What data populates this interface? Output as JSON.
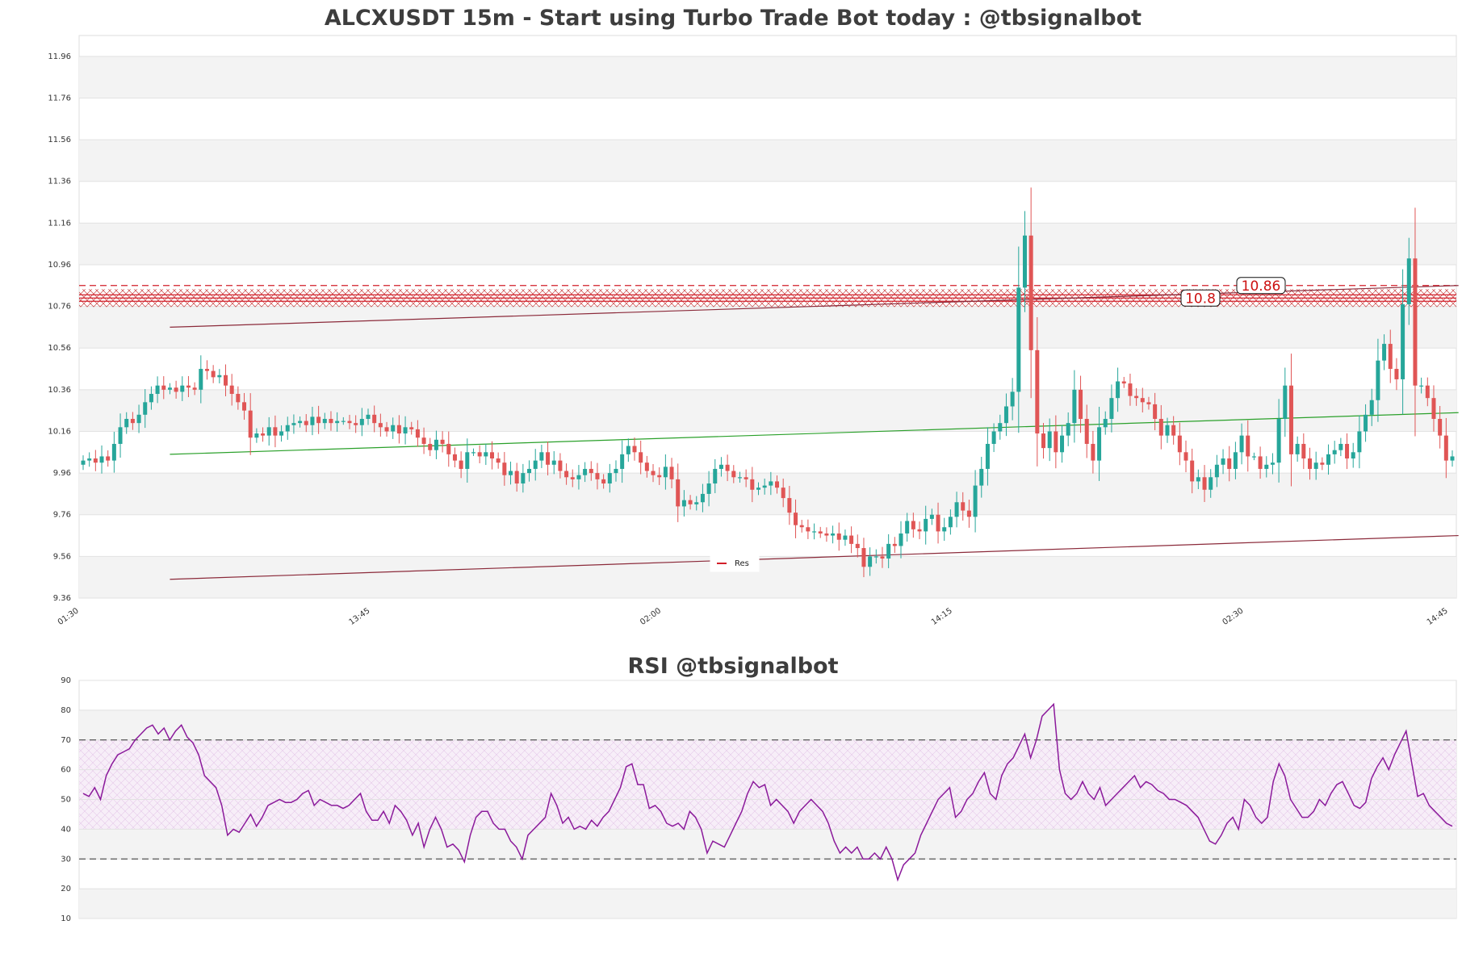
{
  "chart_data": [
    {
      "type": "candlestick",
      "title": "ALCXUSDT 15m - Start using Turbo Trade Bot today : @tbsignalbot",
      "ylim": [
        9.36,
        12.06
      ],
      "yticks": [
        "9.36",
        "9.56",
        "9.76",
        "9.96",
        "10.16",
        "10.36",
        "10.56",
        "10.76",
        "10.96",
        "11.16",
        "11.36",
        "11.56",
        "11.76",
        "11.96"
      ],
      "xticks": [
        "01:30",
        "13:45",
        "02:00",
        "14:15",
        "02:30",
        "14:45"
      ],
      "grid": true,
      "legend": {
        "position": "bottom-center",
        "entries": [
          "Res"
        ]
      },
      "resistance_labels": [
        "10.8",
        "10.86"
      ],
      "resistance_levels": [
        10.8,
        10.86
      ],
      "trendlines": [
        {
          "color": "#8b2a3a",
          "from": [
            14,
            10.66
          ],
          "to": [
            222,
            10.86
          ]
        },
        {
          "color": "#2aa02a",
          "from": [
            14,
            10.05
          ],
          "to": [
            222,
            10.25
          ]
        },
        {
          "color": "#8b2a3a",
          "from": [
            14,
            9.45
          ],
          "to": [
            222,
            9.66
          ]
        }
      ],
      "close": [
        10.02,
        10.03,
        10.01,
        10.04,
        10.02,
        10.1,
        10.18,
        10.22,
        10.2,
        10.24,
        10.3,
        10.34,
        10.38,
        10.36,
        10.37,
        10.35,
        10.38,
        10.37,
        10.36,
        10.46,
        10.45,
        10.42,
        10.43,
        10.38,
        10.34,
        10.3,
        10.26,
        10.13,
        10.15,
        10.14,
        10.18,
        10.14,
        10.16,
        10.19,
        10.2,
        10.21,
        10.19,
        10.23,
        10.2,
        10.22,
        10.2,
        10.21,
        10.21,
        10.2,
        10.19,
        10.22,
        10.24,
        10.2,
        10.18,
        10.16,
        10.19,
        10.15,
        10.18,
        10.17,
        10.13,
        10.1,
        10.07,
        10.12,
        10.1,
        10.05,
        10.02,
        9.98,
        10.06,
        10.06,
        10.04,
        10.06,
        10.03,
        10.01,
        9.95,
        9.97,
        9.91,
        9.96,
        9.98,
        10.02,
        10.06,
        10.0,
        10.02,
        9.97,
        9.94,
        9.93,
        9.95,
        9.98,
        9.96,
        9.93,
        9.91,
        9.96,
        9.98,
        10.05,
        10.09,
        10.06,
        10.01,
        9.97,
        9.95,
        9.94,
        9.99,
        9.93,
        9.8,
        9.83,
        9.81,
        9.82,
        9.86,
        9.91,
        9.98,
        10.0,
        9.97,
        9.94,
        9.94,
        9.93,
        9.88,
        9.89,
        9.9,
        9.92,
        9.89,
        9.84,
        9.77,
        9.71,
        9.7,
        9.68,
        9.68,
        9.67,
        9.66,
        9.67,
        9.64,
        9.66,
        9.62,
        9.6,
        9.51,
        9.56,
        9.56,
        9.55,
        9.62,
        9.61,
        9.67,
        9.73,
        9.69,
        9.68,
        9.74,
        9.76,
        9.68,
        9.7,
        9.75,
        9.82,
        9.78,
        9.75,
        9.9,
        9.98,
        10.1,
        10.16,
        10.2,
        10.28,
        10.35,
        10.85,
        11.1,
        10.55,
        10.15,
        10.08,
        10.16,
        10.06,
        10.14,
        10.2,
        10.36,
        10.22,
        10.1,
        10.02,
        10.18,
        10.22,
        10.32,
        10.4,
        10.39,
        10.33,
        10.32,
        10.3,
        10.29,
        10.22,
        10.14,
        10.19,
        10.14,
        10.06,
        10.02,
        9.92,
        9.94,
        9.88,
        9.94,
        10.0,
        10.03,
        9.98,
        10.06,
        10.14,
        10.04,
        10.04,
        9.98,
        10.0,
        10.01,
        10.22,
        10.38,
        10.05,
        10.1,
        10.03,
        9.98,
        10.01,
        10.0,
        10.05,
        10.07,
        10.1,
        10.03,
        10.06,
        10.16,
        10.24,
        10.31,
        10.5,
        10.58,
        10.46,
        10.41,
        10.77,
        10.99,
        10.38,
        10.38,
        10.32,
        10.22,
        10.14,
        10.02,
        10.04
      ]
    },
    {
      "type": "line",
      "title": "RSI @tbsignalbot",
      "ylim": [
        10,
        90
      ],
      "yticks": [
        "10",
        "20",
        "30",
        "40",
        "50",
        "60",
        "70",
        "80",
        "90"
      ],
      "reference_lines": [
        30,
        70
      ],
      "bands": [
        [
          40,
          70
        ]
      ],
      "series": [
        {
          "color": "#8b1a9b",
          "values": [
            52,
            51,
            54,
            50,
            58,
            62,
            65,
            66,
            67,
            70,
            72,
            74,
            75,
            72,
            74,
            70,
            73,
            75,
            71,
            69,
            65,
            58,
            56,
            54,
            48,
            38,
            40,
            39,
            42,
            45,
            41,
            44,
            48,
            49,
            50,
            49,
            49,
            50,
            52,
            53,
            48,
            50,
            49,
            48,
            48,
            47,
            48,
            50,
            52,
            46,
            43,
            43,
            46,
            42,
            48,
            46,
            43,
            38,
            42,
            34,
            40,
            44,
            40,
            34,
            35,
            33,
            29,
            38,
            44,
            46,
            46,
            42,
            40,
            40,
            36,
            34,
            30,
            38,
            40,
            42,
            44,
            52,
            48,
            42,
            44,
            40,
            41,
            40,
            43,
            41,
            44,
            46,
            50,
            54,
            61,
            62,
            55,
            55,
            47,
            48,
            46,
            42,
            41,
            42,
            40,
            46,
            44,
            40,
            32,
            36,
            35,
            34,
            38,
            42,
            46,
            52,
            56,
            54,
            55,
            48,
            50,
            48,
            46,
            42,
            46,
            48,
            50,
            48,
            46,
            42,
            36,
            32,
            34,
            32,
            34,
            30,
            30,
            32,
            30,
            34,
            30,
            23,
            28,
            30,
            32,
            38,
            42,
            46,
            50,
            52,
            54,
            44,
            46,
            50,
            52,
            56,
            59,
            52,
            50,
            58,
            62,
            64,
            68,
            72,
            64,
            70,
            78,
            80,
            82,
            60,
            52,
            50,
            52,
            56,
            52,
            50,
            54,
            48,
            50,
            52,
            54,
            56,
            58,
            54,
            56,
            55,
            53,
            52,
            50,
            50,
            49,
            48,
            46,
            44,
            40,
            36,
            35,
            38,
            42,
            44,
            40,
            50,
            48,
            44,
            42,
            44,
            56,
            62,
            58,
            50,
            47,
            44,
            44,
            46,
            50,
            48,
            52,
            55,
            56,
            52,
            48,
            47,
            49,
            57,
            61,
            64,
            60,
            65,
            69,
            73,
            62,
            51,
            52,
            48,
            46,
            44,
            42,
            41
          ]
        }
      ]
    }
  ]
}
